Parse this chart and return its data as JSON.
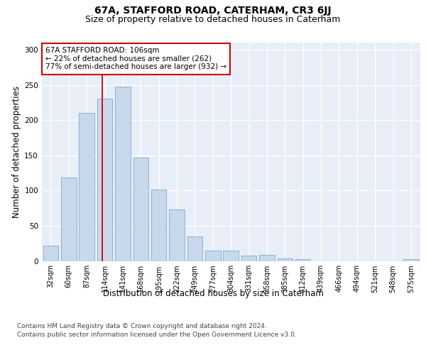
{
  "title": "67A, STAFFORD ROAD, CATERHAM, CR3 6JJ",
  "subtitle": "Size of property relative to detached houses in Caterham",
  "xlabel": "Distribution of detached houses by size in Caterham",
  "ylabel": "Number of detached properties",
  "bar_color": "#c8d8ec",
  "bar_edgecolor": "#7aaacf",
  "categories": [
    "32sqm",
    "60sqm",
    "87sqm",
    "114sqm",
    "141sqm",
    "168sqm",
    "195sqm",
    "222sqm",
    "249sqm",
    "277sqm",
    "304sqm",
    "331sqm",
    "358sqm",
    "385sqm",
    "412sqm",
    "439sqm",
    "466sqm",
    "494sqm",
    "521sqm",
    "548sqm",
    "575sqm"
  ],
  "values": [
    22,
    118,
    210,
    230,
    248,
    147,
    101,
    73,
    35,
    15,
    15,
    8,
    9,
    4,
    3,
    0,
    0,
    0,
    0,
    0,
    3
  ],
  "vline_index": 2.85,
  "vline_color": "#cc0000",
  "annotation_text": "67A STAFFORD ROAD: 106sqm\n← 22% of detached houses are smaller (262)\n77% of semi-detached houses are larger (932) →",
  "ylim_max": 310,
  "yticks": [
    0,
    50,
    100,
    150,
    200,
    250,
    300
  ],
  "bg_color": "#e8eef7",
  "footer1": "Contains HM Land Registry data © Crown copyright and database right 2024.",
  "footer2": "Contains public sector information licensed under the Open Government Licence v3.0.",
  "title_fontsize": 10,
  "subtitle_fontsize": 9,
  "tick_fontsize": 7,
  "axis_label_fontsize": 8.5,
  "annotation_fontsize": 7.5,
  "footer_fontsize": 6.5
}
